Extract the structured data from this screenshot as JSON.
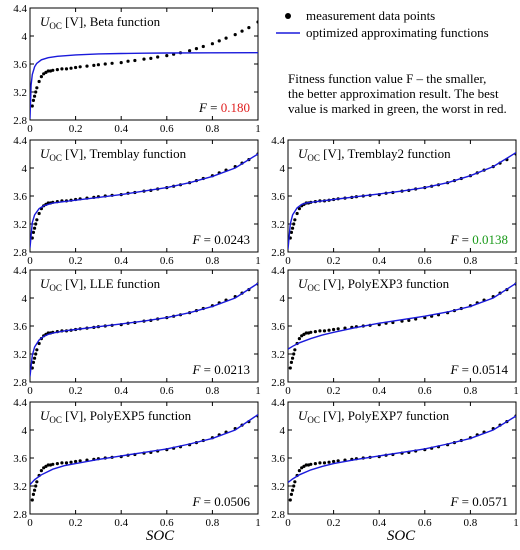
{
  "legend": {
    "measurement_label": "measurement data points",
    "approx_label": "optimized approximating functions",
    "fitness_line1": "Fitness function value F  –  the smaller,",
    "fitness_line2": "the better approximation result. The best",
    "fitness_line3": "value is marked in green, the worst in red."
  },
  "colors": {
    "curve": "#1a1adb",
    "points": "#000000",
    "best": "#1a9a1a",
    "worst": "#e02020",
    "normal": "#000000"
  },
  "shared_xlabel": "SOC",
  "chart_data": [
    {
      "type": "line",
      "title_prefix": "U",
      "title_sub": "OC",
      "title_suffix": " [V], Beta function",
      "fitness_label": "F = ",
      "fitness_value": "0.180",
      "fitness_status": "worst",
      "xlim": [
        0,
        1
      ],
      "ylim": [
        2.8,
        4.4
      ],
      "xticks": [
        "0",
        "0.2",
        "0.4",
        "0.6",
        "0.8",
        "1"
      ],
      "yticks": [
        "2.8",
        "3.2",
        "3.6",
        "4",
        "4.4"
      ],
      "show_xticklabels": true,
      "fit": {
        "x": [
          0.0,
          0.005,
          0.01,
          0.02,
          0.03,
          0.05,
          0.08,
          0.12,
          0.2,
          0.3,
          0.4,
          0.5,
          0.6,
          0.8,
          1.0
        ],
        "y": [
          2.82,
          3.3,
          3.45,
          3.56,
          3.61,
          3.66,
          3.69,
          3.71,
          3.73,
          3.745,
          3.75,
          3.755,
          3.757,
          3.76,
          3.762
        ]
      }
    },
    {
      "type": "line",
      "title_prefix": "U",
      "title_sub": "OC",
      "title_suffix": " [V], Tremblay function",
      "fitness_label": "F = ",
      "fitness_value": "0.0243",
      "fitness_status": "normal",
      "xlim": [
        0,
        1
      ],
      "ylim": [
        2.8,
        4.4
      ],
      "xticks": [
        "0",
        "0.2",
        "0.4",
        "0.6",
        "0.8",
        "1"
      ],
      "yticks": [
        "2.8",
        "3.2",
        "3.6",
        "4",
        "4.4"
      ],
      "show_xticklabels": true,
      "fit": {
        "x": [
          0.0,
          0.01,
          0.02,
          0.04,
          0.06,
          0.08,
          0.1,
          0.15,
          0.2,
          0.3,
          0.4,
          0.5,
          0.6,
          0.7,
          0.8,
          0.9,
          1.0
        ],
        "y": [
          2.86,
          3.22,
          3.33,
          3.42,
          3.46,
          3.48,
          3.5,
          3.52,
          3.54,
          3.58,
          3.62,
          3.67,
          3.72,
          3.79,
          3.88,
          4.0,
          4.2
        ]
      }
    },
    {
      "type": "line",
      "title_prefix": "U",
      "title_sub": "OC",
      "title_suffix": " [V], Tremblay2 function",
      "fitness_label": "F = ",
      "fitness_value": "0.0138",
      "fitness_status": "best",
      "xlim": [
        0,
        1
      ],
      "ylim": [
        2.8,
        4.4
      ],
      "xticks": [
        "0",
        "0.2",
        "0.4",
        "0.6",
        "0.8",
        "1"
      ],
      "yticks": [
        "2.8",
        "3.2",
        "3.6",
        "4",
        "4.4"
      ],
      "show_xticklabels": true,
      "fit": {
        "x": [
          0.0,
          0.01,
          0.02,
          0.04,
          0.06,
          0.08,
          0.1,
          0.15,
          0.2,
          0.3,
          0.4,
          0.5,
          0.6,
          0.7,
          0.8,
          0.9,
          1.0
        ],
        "y": [
          2.84,
          3.2,
          3.33,
          3.43,
          3.48,
          3.5,
          3.51,
          3.53,
          3.55,
          3.59,
          3.63,
          3.67,
          3.72,
          3.79,
          3.89,
          4.02,
          4.22
        ]
      }
    },
    {
      "type": "line",
      "title_prefix": "U",
      "title_sub": "OC",
      "title_suffix": " [V], LLE function",
      "fitness_label": "F = ",
      "fitness_value": "0.0213",
      "fitness_status": "normal",
      "xlim": [
        0,
        1
      ],
      "ylim": [
        2.8,
        4.4
      ],
      "xticks": [
        "0",
        "0.2",
        "0.4",
        "0.6",
        "0.8",
        "1"
      ],
      "yticks": [
        "2.8",
        "3.2",
        "3.6",
        "4",
        "4.4"
      ],
      "show_xticklabels": true,
      "fit": {
        "x": [
          0.0,
          0.01,
          0.02,
          0.04,
          0.06,
          0.08,
          0.1,
          0.15,
          0.2,
          0.3,
          0.4,
          0.5,
          0.6,
          0.7,
          0.8,
          0.9,
          1.0
        ],
        "y": [
          2.88,
          3.18,
          3.3,
          3.4,
          3.45,
          3.48,
          3.5,
          3.53,
          3.55,
          3.59,
          3.63,
          3.67,
          3.72,
          3.79,
          3.88,
          4.0,
          4.21
        ]
      }
    },
    {
      "type": "line",
      "title_prefix": "U",
      "title_sub": "OC",
      "title_suffix": " [V], PolyEXP3 function",
      "fitness_label": "F = ",
      "fitness_value": "0.0514",
      "fitness_status": "normal",
      "xlim": [
        0,
        1
      ],
      "ylim": [
        2.8,
        4.4
      ],
      "xticks": [
        "0",
        "0.2",
        "0.4",
        "0.6",
        "0.8",
        "1"
      ],
      "yticks": [
        "2.8",
        "3.2",
        "3.6",
        "4",
        "4.4"
      ],
      "show_xticklabels": true,
      "fit": {
        "x": [
          0.0,
          0.02,
          0.05,
          0.1,
          0.15,
          0.2,
          0.3,
          0.4,
          0.5,
          0.6,
          0.7,
          0.8,
          0.9,
          1.0
        ],
        "y": [
          3.27,
          3.31,
          3.36,
          3.42,
          3.47,
          3.51,
          3.58,
          3.64,
          3.69,
          3.74,
          3.8,
          3.88,
          4.0,
          4.21
        ]
      }
    },
    {
      "type": "line",
      "title_prefix": "U",
      "title_sub": "OC",
      "title_suffix": " [V], PolyEXP5 function",
      "fitness_label": "F = ",
      "fitness_value": "0.0506",
      "fitness_status": "normal",
      "xlim": [
        0,
        1
      ],
      "ylim": [
        2.8,
        4.4
      ],
      "xticks": [
        "0",
        "0.2",
        "0.4",
        "0.6",
        "0.8",
        "1"
      ],
      "yticks": [
        "2.8",
        "3.2",
        "3.6",
        "4",
        "4.4"
      ],
      "show_xticklabels": true,
      "fit": {
        "x": [
          0.0,
          0.02,
          0.05,
          0.1,
          0.15,
          0.2,
          0.3,
          0.4,
          0.5,
          0.6,
          0.7,
          0.8,
          0.9,
          1.0
        ],
        "y": [
          3.22,
          3.29,
          3.36,
          3.44,
          3.49,
          3.52,
          3.58,
          3.63,
          3.68,
          3.73,
          3.8,
          3.88,
          4.0,
          4.22
        ]
      }
    },
    {
      "type": "line",
      "title_prefix": "U",
      "title_sub": "OC",
      "title_suffix": " [V], PolyEXP7 function",
      "fitness_label": "F = ",
      "fitness_value": "0.0571",
      "fitness_status": "normal",
      "xlim": [
        0,
        1
      ],
      "ylim": [
        2.8,
        4.4
      ],
      "xticks": [
        "0",
        "0.2",
        "0.4",
        "0.6",
        "0.8",
        "1"
      ],
      "yticks": [
        "2.8",
        "3.2",
        "3.6",
        "4",
        "4.4"
      ],
      "show_xticklabels": true,
      "fit": {
        "x": [
          0.0,
          0.02,
          0.05,
          0.1,
          0.15,
          0.2,
          0.3,
          0.4,
          0.5,
          0.6,
          0.7,
          0.8,
          0.9,
          1.0
        ],
        "y": [
          3.25,
          3.3,
          3.36,
          3.43,
          3.48,
          3.52,
          3.58,
          3.63,
          3.68,
          3.73,
          3.8,
          3.88,
          4.0,
          4.2
        ]
      }
    }
  ],
  "measurement": {
    "x": [
      0.01,
      0.015,
      0.02,
      0.025,
      0.03,
      0.04,
      0.05,
      0.06,
      0.07,
      0.08,
      0.09,
      0.1,
      0.12,
      0.14,
      0.16,
      0.18,
      0.2,
      0.22,
      0.25,
      0.28,
      0.3,
      0.33,
      0.36,
      0.4,
      0.43,
      0.46,
      0.5,
      0.53,
      0.56,
      0.6,
      0.63,
      0.66,
      0.7,
      0.73,
      0.76,
      0.8,
      0.83,
      0.86,
      0.9,
      0.93,
      0.96,
      1.0
    ],
    "y": [
      3.0,
      3.08,
      3.14,
      3.2,
      3.26,
      3.35,
      3.42,
      3.46,
      3.48,
      3.5,
      3.5,
      3.51,
      3.52,
      3.53,
      3.53,
      3.54,
      3.55,
      3.56,
      3.57,
      3.58,
      3.59,
      3.6,
      3.61,
      3.62,
      3.64,
      3.65,
      3.67,
      3.68,
      3.7,
      3.72,
      3.74,
      3.76,
      3.79,
      3.82,
      3.85,
      3.89,
      3.93,
      3.97,
      4.02,
      4.07,
      4.12,
      4.2
    ]
  }
}
